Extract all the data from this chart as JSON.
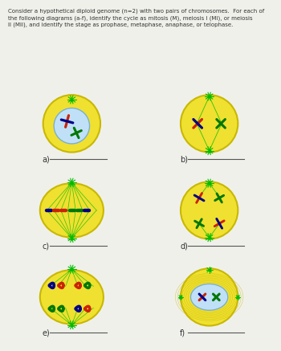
{
  "title_text": "Consider a hypothetical diploid genome (n=2) with two pairs of chromosomes.  For each of\nthe following diagrams (a-f), identify the cycle as mitosis (M), meiosis I (MI), or meiosis\nII (MII), and identify the stage as prophase, metaphase, anaphase, or telophase.",
  "background": "#f0f0eb",
  "cell_yellow": "#f0e030",
  "cell_yellow_dark": "#c8b800",
  "nucleus_blue": "#c0e0f8",
  "spindle_color": "#00bb00",
  "chr_red": "#cc2200",
  "chr_green": "#007700",
  "chr_darkblue": "#000088",
  "line_color": "#555555",
  "labels": [
    "a)",
    "b)",
    "c)",
    "d)",
    "e)",
    "f)"
  ]
}
